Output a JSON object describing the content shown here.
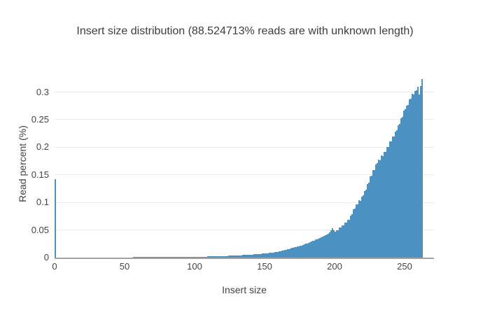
{
  "chart_data": {
    "type": "bar",
    "title": "Insert size distribution (88.524713% reads are with unknown length)",
    "xlabel": "Insert size",
    "ylabel": "Read percent (%)",
    "x_start": 0,
    "xlim": [
      0,
      271
    ],
    "ylim": [
      0,
      0.34
    ],
    "grid": true,
    "legend": false,
    "x_ticks": [
      0,
      50,
      100,
      150,
      200,
      250
    ],
    "x_tick_labels": [
      "0",
      "50",
      "100",
      "150",
      "200",
      "250"
    ],
    "y_ticks": [
      0,
      0.05,
      0.1,
      0.15,
      0.2,
      0.25,
      0.3
    ],
    "y_tick_labels": [
      "0",
      "0.05",
      "0.1",
      "0.15",
      "0.2",
      "0.25",
      "0.3"
    ],
    "colors": {
      "bar": "#4b92c3",
      "grid": "#ebebeb",
      "axis_line": "#a3a3a3",
      "tick_text": "#444444",
      "title_text": "#3d3d3d"
    },
    "values": [
      0.142,
      0.0002,
      0.0002,
      0.0002,
      0.0002,
      0.0002,
      0.0002,
      0.0002,
      0.0002,
      0.0002,
      0.0002,
      0.00021,
      0.00022,
      0.00023,
      0.00024,
      0.00025,
      0.00026,
      0.00027,
      0.00028,
      0.00029,
      0.0003,
      0.00031,
      0.00032,
      0.00033,
      0.00034,
      0.00035,
      0.00036,
      0.00037,
      0.00038,
      0.00039,
      0.0004,
      0.00041,
      0.00042,
      0.00043,
      0.00044,
      0.00045,
      0.00046,
      0.00047,
      0.00048,
      0.00049,
      0.0005,
      0.00051,
      0.00052,
      0.00053,
      0.00054,
      0.00055,
      0.00056,
      0.00057,
      0.00058,
      0.00059,
      0.0006,
      0.00061,
      0.00062,
      0.00063,
      0.00064,
      0.00065,
      0.00066,
      0.00067,
      0.00068,
      0.00069,
      0.0007,
      0.00071,
      0.00072,
      0.00073,
      0.00074,
      0.00075,
      0.00076,
      0.00077,
      0.00078,
      0.00079,
      0.0008,
      0.00082,
      0.00084,
      0.00086,
      0.00088,
      0.0009,
      0.00092,
      0.00094,
      0.00096,
      0.00098,
      0.001,
      0.00102,
      0.00104,
      0.00106,
      0.00108,
      0.0011,
      0.00112,
      0.00114,
      0.00116,
      0.00118,
      0.0012,
      0.00123,
      0.00126,
      0.00129,
      0.00132,
      0.00135,
      0.00138,
      0.00141,
      0.00144,
      0.00147,
      0.0015,
      0.00155,
      0.0016,
      0.00165,
      0.0017,
      0.00175,
      0.0018,
      0.00185,
      0.0019,
      0.00195,
      0.002,
      0.00208,
      0.00216,
      0.00224,
      0.00232,
      0.0024,
      0.00248,
      0.00256,
      0.00264,
      0.00272,
      0.0028,
      0.00292,
      0.00304,
      0.00316,
      0.00328,
      0.0034,
      0.00352,
      0.00364,
      0.00376,
      0.00388,
      0.004,
      0.00415,
      0.0043,
      0.00445,
      0.0046,
      0.00475,
      0.0049,
      0.00505,
      0.0052,
      0.00535,
      0.0055,
      0.0057,
      0.0059,
      0.0061,
      0.0063,
      0.0065,
      0.0067,
      0.0069,
      0.0071,
      0.0073,
      0.0075,
      0.0078,
      0.0081,
      0.0084,
      0.0087,
      0.009,
      0.0094,
      0.0098,
      0.0102,
      0.0106,
      0.011,
      0.0116,
      0.0122,
      0.0128,
      0.0134,
      0.014,
      0.0148,
      0.0156,
      0.0164,
      0.0172,
      0.018,
      0.0186,
      0.0192,
      0.0198,
      0.0204,
      0.021,
      0.022,
      0.023,
      0.024,
      0.025,
      0.026,
      0.027,
      0.028,
      0.029,
      0.03,
      0.031,
      0.0325,
      0.0331,
      0.0349,
      0.0355,
      0.0373,
      0.0379,
      0.0397,
      0.0403,
      0.0421,
      0.0427,
      0.046,
      0.05,
      0.053,
      0.049,
      0.047,
      0.05,
      0.05,
      0.054,
      0.054,
      0.058,
      0.059,
      0.063,
      0.064,
      0.068,
      0.069,
      0.076,
      0.079,
      0.087,
      0.089,
      0.097,
      0.096,
      0.104,
      0.103,
      0.111,
      0.113,
      0.12,
      0.123,
      0.133,
      0.136,
      0.147,
      0.148,
      0.158,
      0.159,
      0.169,
      0.171,
      0.177,
      0.176,
      0.185,
      0.184,
      0.192,
      0.192,
      0.201,
      0.201,
      0.21,
      0.211,
      0.219,
      0.22,
      0.229,
      0.231,
      0.24,
      0.242,
      0.253,
      0.255,
      0.266,
      0.269,
      0.275,
      0.277,
      0.287,
      0.288,
      0.297,
      0.295,
      0.302,
      0.303,
      0.31,
      0.295,
      0.311,
      0.323
    ]
  }
}
